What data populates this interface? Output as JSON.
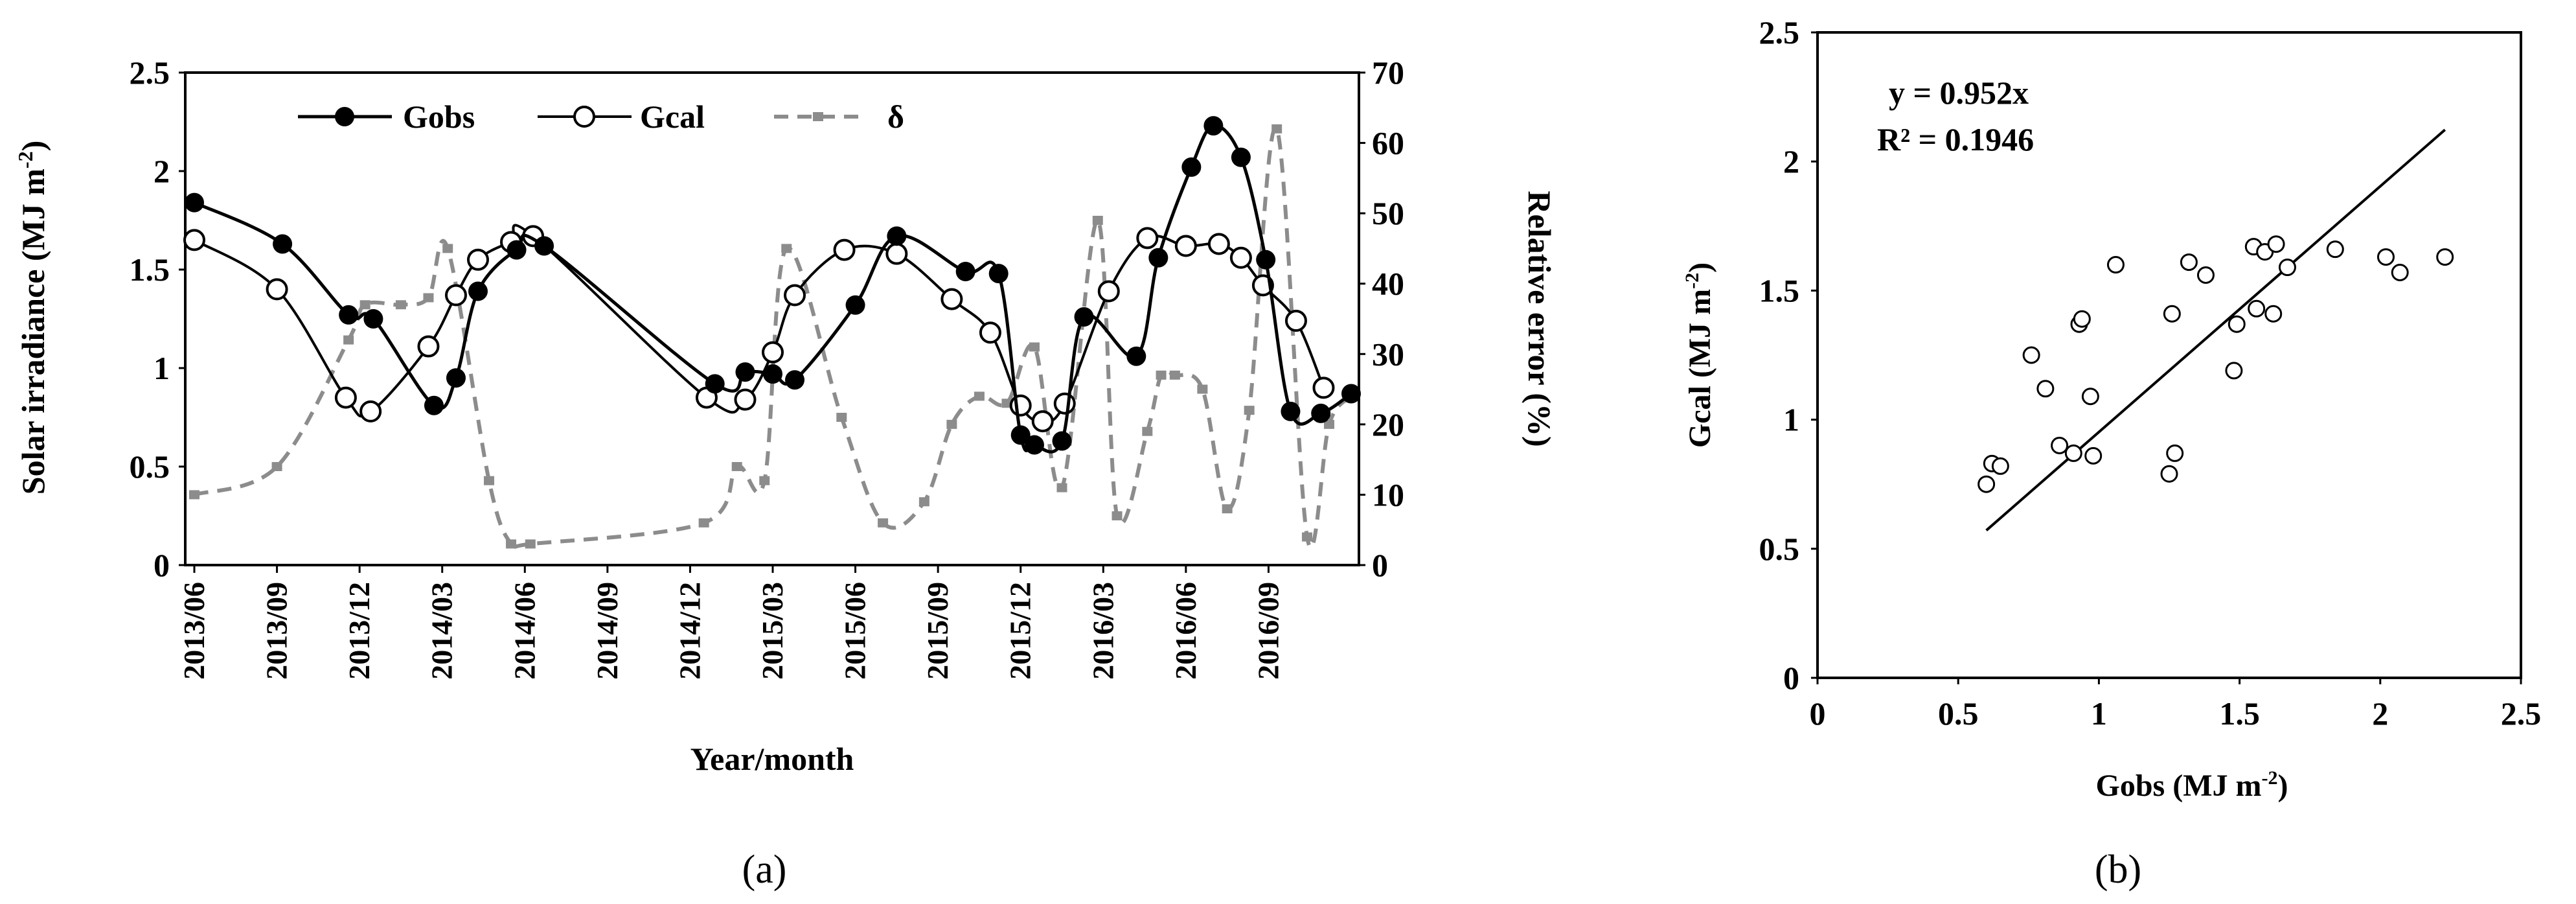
{
  "figure_labels": {
    "a": "(a)",
    "b": "(b)"
  },
  "chart_data": [
    {
      "type": "line",
      "panel": "(a)",
      "xlabel": "Year/month",
      "ylabel": "Solar irradiance (MJ m-2)",
      "ylabel_main": "Solar irradiance (MJ m",
      "ylabel_sup": "-2",
      "ylabel_close": ")",
      "y2label": "Relative error (%)",
      "ylim": [
        0,
        2.5
      ],
      "y2lim": [
        0,
        70
      ],
      "yticks": [
        "0",
        "0.5",
        "1",
        "1.5",
        "2",
        "2.5"
      ],
      "y2ticks": [
        "0",
        "10",
        "20",
        "30",
        "40",
        "50",
        "60",
        "70"
      ],
      "xticks": [
        "2013/06",
        "2013/09",
        "2013/12",
        "2014/03",
        "2014/06",
        "2014/09",
        "2014/12",
        "2015/03",
        "2015/06",
        "2015/09",
        "2015/12",
        "2016/03",
        "2016/06",
        "2016/09"
      ],
      "legend": [
        "Gobs",
        "Gcal",
        "δ"
      ],
      "legend_position": "top-left",
      "series": [
        {
          "name": "Gobs",
          "axis": "left",
          "x": [
            0,
            3.2,
            5.6,
            6.5,
            8.7,
            9.5,
            10.3,
            11.7,
            12.7,
            18.9,
            20.0,
            21.0,
            21.8,
            24.0,
            25.5,
            28.0,
            29.2,
            30.0,
            30.5,
            31.5,
            32.3,
            34.2,
            35.0,
            36.2,
            37.0,
            38.0,
            38.9,
            39.8,
            40.9,
            42.0
          ],
          "values": [
            1.84,
            1.63,
            1.27,
            1.25,
            0.81,
            0.95,
            1.39,
            1.6,
            1.62,
            0.92,
            0.98,
            0.97,
            0.94,
            1.32,
            1.67,
            1.49,
            1.48,
            0.66,
            0.61,
            0.63,
            1.26,
            1.06,
            1.56,
            2.02,
            2.23,
            2.07,
            1.55,
            0.78,
            0.77,
            0.87
          ]
        },
        {
          "name": "Gcal",
          "axis": "left",
          "x": [
            0,
            3.0,
            5.5,
            6.4,
            8.5,
            9.5,
            10.3,
            11.5,
            12.3,
            18.6,
            20.0,
            21.0,
            21.8,
            23.6,
            25.5,
            27.5,
            28.9,
            30.0,
            30.8,
            31.6,
            33.2,
            34.6,
            36.0,
            37.2,
            38.0,
            38.8,
            40.0,
            41.0
          ],
          "values": [
            1.65,
            1.4,
            0.85,
            0.78,
            1.11,
            1.37,
            1.55,
            1.64,
            1.67,
            0.85,
            0.84,
            1.08,
            1.37,
            1.6,
            1.58,
            1.35,
            1.18,
            0.81,
            0.73,
            0.82,
            1.39,
            1.66,
            1.62,
            1.63,
            1.56,
            1.42,
            1.24,
            0.9
          ]
        },
        {
          "name": "δ",
          "axis": "right",
          "x": [
            0,
            3.0,
            5.6,
            6.2,
            7.5,
            8.5,
            9.2,
            10.7,
            11.5,
            12.2,
            18.5,
            19.7,
            20.7,
            21.5,
            23.5,
            25.0,
            26.5,
            27.5,
            28.5,
            29.5,
            30.5,
            31.5,
            32.8,
            33.5,
            34.6,
            35.1,
            35.6,
            36.6,
            37.5,
            38.3,
            39.3,
            40.4,
            41.2,
            42.0
          ],
          "values": [
            10,
            14,
            32,
            37,
            37,
            38,
            45,
            12,
            3,
            3,
            6,
            14,
            12,
            45,
            21,
            6,
            9,
            20,
            24,
            23,
            31,
            11,
            49,
            7,
            19,
            27,
            27,
            25,
            8,
            22,
            62,
            4,
            20,
            24
          ]
        }
      ]
    },
    {
      "type": "scatter",
      "panel": "(b)",
      "xlabel": "Gobs (MJ m-2)",
      "xlabel_main": "Gobs (MJ m",
      "xlabel_sup": "-2",
      "xlabel_close": ")",
      "ylabel": "Gcal (MJ m-2)",
      "ylabel_main": "Gcal (MJ m",
      "ylabel_sup": "-2",
      "ylabel_close": ")",
      "xlim": [
        0,
        2.5
      ],
      "ylim": [
        0,
        2.5
      ],
      "xticks": [
        "0",
        "0.5",
        "1",
        "1.5",
        "2",
        "2.5"
      ],
      "yticks": [
        "0",
        "0.5",
        "1",
        "1.5",
        "2",
        "2.5"
      ],
      "equation": "y = 0.952x",
      "r_squared": "R² = 0.1946",
      "trendline": {
        "slope": 0.952,
        "x_range": [
          0.6,
          2.23
        ]
      },
      "points": [
        [
          0.6,
          0.75
        ],
        [
          0.62,
          0.83
        ],
        [
          0.65,
          0.82
        ],
        [
          0.76,
          1.25
        ],
        [
          0.81,
          1.12
        ],
        [
          0.86,
          0.9
        ],
        [
          0.91,
          0.87
        ],
        [
          0.93,
          1.37
        ],
        [
          0.94,
          1.39
        ],
        [
          0.97,
          1.09
        ],
        [
          0.98,
          0.86
        ],
        [
          1.06,
          1.6
        ],
        [
          1.25,
          0.79
        ],
        [
          1.26,
          1.41
        ],
        [
          1.27,
          0.87
        ],
        [
          1.32,
          1.61
        ],
        [
          1.38,
          1.56
        ],
        [
          1.48,
          1.19
        ],
        [
          1.49,
          1.37
        ],
        [
          1.55,
          1.67
        ],
        [
          1.56,
          1.43
        ],
        [
          1.59,
          1.65
        ],
        [
          1.62,
          1.41
        ],
        [
          1.63,
          1.68
        ],
        [
          1.67,
          1.59
        ],
        [
          1.84,
          1.66
        ],
        [
          2.02,
          1.63
        ],
        [
          2.07,
          1.57
        ],
        [
          2.23,
          1.63
        ]
      ]
    }
  ]
}
